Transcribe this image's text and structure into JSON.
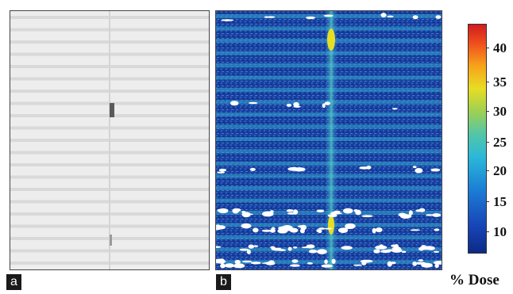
{
  "panels": {
    "a": {
      "label": "a"
    },
    "b": {
      "label": "b"
    }
  },
  "colorbar": {
    "ticks": [
      "40",
      "35",
      "30",
      "25",
      "20",
      "15",
      "10"
    ],
    "unit_label": "% Dose"
  }
}
